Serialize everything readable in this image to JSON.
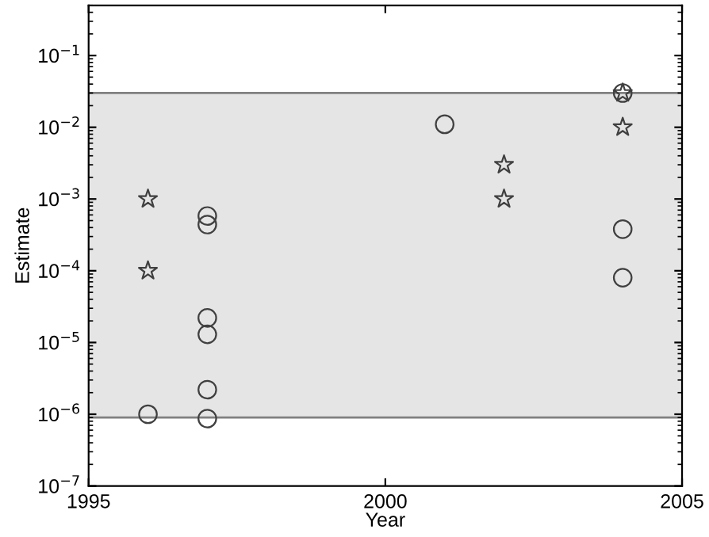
{
  "chart_data": {
    "type": "scatter",
    "xlabel": "Year",
    "ylabel": "Estimate",
    "log": "y",
    "xlim": [
      1995,
      2005
    ],
    "xticks": [
      1995,
      2000,
      2005
    ],
    "ylim": [
      1e-07,
      0.5
    ],
    "yticks": [
      {
        "value": 1e-07,
        "label": "10$^{−7}$"
      },
      {
        "value": 1e-06,
        "label": "10$^{−6}$"
      },
      {
        "value": 1e-05,
        "label": "10$^{−5}$"
      },
      {
        "value": 0.0001,
        "label": "10$^{−4}$"
      },
      {
        "value": 0.001,
        "label": "10$^{−3}$"
      },
      {
        "value": 0.01,
        "label": "10$^{−2}$"
      },
      {
        "value": 0.1,
        "label": "10$^{−1}$"
      }
    ],
    "bands": [
      {
        "axis": "y",
        "from": 9e-07,
        "to": 0.03,
        "color": "#e5e5e5"
      }
    ],
    "ref_lines": [
      {
        "axis": "y",
        "value": 9e-07,
        "color": "#808080"
      },
      {
        "axis": "y",
        "value": 0.03,
        "color": "#808080"
      }
    ],
    "grid": false,
    "series": [
      {
        "color": "#404040",
        "marker": "circle",
        "x": [
          1996,
          1997,
          1997,
          1997,
          1997,
          1997,
          1997,
          2001,
          2004,
          2004,
          2004
        ],
        "values": [
          1e-06,
          0.00058,
          0.00044,
          2.2e-05,
          1.3e-05,
          2.2e-06,
          8.7e-07,
          0.011,
          0.03,
          0.00038,
          8e-05
        ]
      },
      {
        "color": "#404040",
        "marker": "star",
        "x": [
          1996,
          1996,
          2002,
          2002,
          2004,
          2004
        ],
        "values": [
          0.001,
          0.0001,
          0.003,
          0.001,
          0.03,
          0.01
        ]
      }
    ]
  }
}
